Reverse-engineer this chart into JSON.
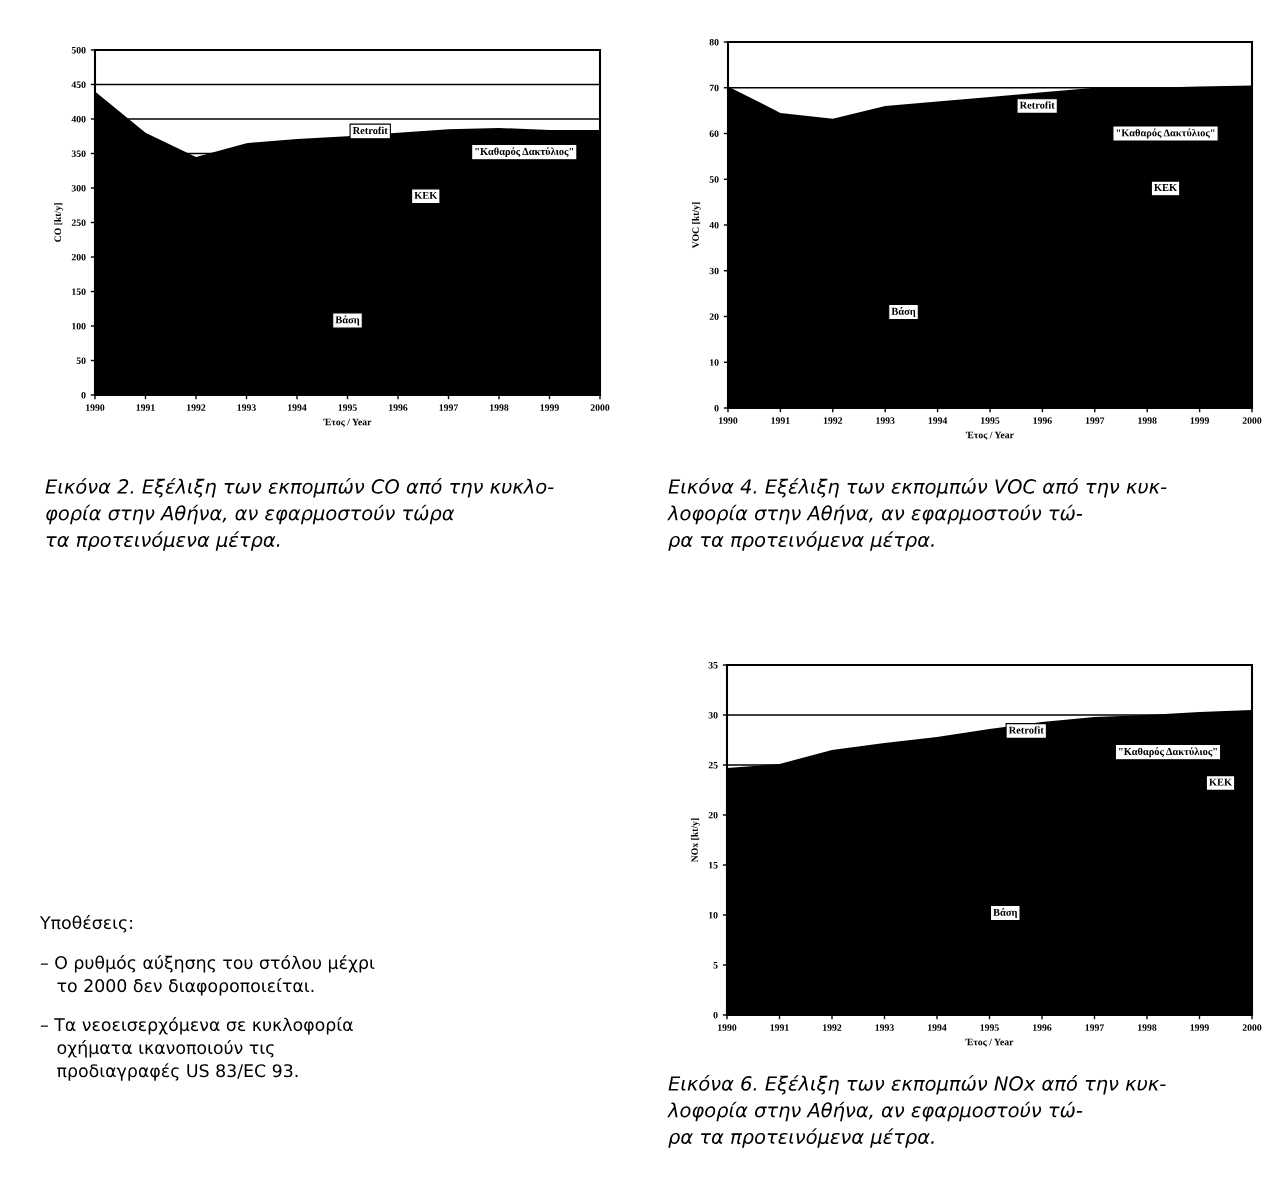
{
  "chart_data": [
    {
      "type": "area",
      "xlabel": "Έτος / Year",
      "ylabel": "CO [kt/y]",
      "x": [
        1990,
        1991,
        1992,
        1993,
        1994,
        1995,
        1996,
        1997,
        1998,
        1999,
        2000
      ],
      "series": [
        {
          "color": "#000000",
          "values": [
            440,
            380,
            345,
            365,
            371,
            375,
            380,
            385,
            387,
            384,
            384
          ]
        }
      ],
      "xlim": [
        1990,
        2000
      ],
      "xticks": [
        1990,
        1991,
        1992,
        1993,
        1994,
        1995,
        1996,
        1997,
        1998,
        1999,
        2000
      ],
      "ylim": [
        0,
        500
      ],
      "yticks": [
        0,
        50,
        100,
        150,
        200,
        250,
        300,
        350,
        400,
        450,
        500
      ],
      "grid": "y",
      "annotations": [
        {
          "text": "Retrofit",
          "x": 1995.45,
          "y": 382
        },
        "\"Καθαρός Δακτύλιος\"",
        {
          "text": "ΚΕΚ",
          "x": 1996.55,
          "y": 288
        },
        {
          "text": "Βάση",
          "x": 1995.0,
          "y": 108
        },
        "Εικόνα 2. Εξέλιξη των εκπομπών CO από την κυκλο-\nφορία στην Αθήνα, αν εφαρμοστούν τώρα\nτα προτεινόμενα μέτρα."
      ]
    },
    {
      "type": "area",
      "xlabel": "Έτος / Year",
      "ylabel": "VOC [kt/y]",
      "x": [
        1990,
        1991,
        1992,
        1993,
        1994,
        1995,
        1996,
        1997,
        1998,
        1999,
        2000
      ],
      "series": [
        {
          "color": "#000000",
          "values": [
            70.3,
            64.5,
            63.2,
            66,
            67,
            68,
            69,
            70,
            70,
            70.3,
            70.5
          ]
        }
      ],
      "xlim": [
        1990,
        2000
      ],
      "xticks": [
        1990,
        1991,
        1992,
        1993,
        1994,
        1995,
        1996,
        1997,
        1998,
        1999,
        2000
      ],
      "ylim": [
        0,
        80
      ],
      "yticks": [
        0,
        10,
        20,
        30,
        40,
        50,
        60,
        70,
        80
      ],
      "grid": "y",
      "annotations": [
        {
          "text": "Retrofit",
          "x": 1995.9,
          "y": 66
        },
        "\"Καθαρός Δακτύλιος\"",
        {
          "text": "ΚΕΚ",
          "x": 1998.35,
          "y": 48
        },
        {
          "text": "Βάση",
          "x": 1993.35,
          "y": 21
        },
        "Εικόνα 4. Εξέλιξη των εκπομπών VOC από την κυκ-\nλοφορία στην Αθήνα, αν εφαρμοστούν τώ-\nρα τα προτεινόμενα μέτρα."
      ]
    },
    {
      "type": "other",
      "title": "Υποθέσεις:",
      "annotations": [
        "– Ο ρυθμός αύξησης του στόλου μέχρι\n   το 2000 δεν διαφοροποιείται.",
        "– Τα νεοεισερχόμενα σε κυκλοφορία\n   οχήματα ικανοποιούν τις\n   προδιαγραφές US 83/EC 93."
      ]
    },
    {
      "type": "area",
      "xlabel": "Έτος / Year",
      "ylabel": "NOx [kt/y]",
      "x": [
        1990,
        1991,
        1992,
        1993,
        1994,
        1995,
        1996,
        1997,
        1998,
        1999,
        2000
      ],
      "series": [
        {
          "color": "#000000",
          "values": [
            24.7,
            25.1,
            26.5,
            27.2,
            27.8,
            28.6,
            29.3,
            29.8,
            30,
            30.3,
            30.5
          ]
        }
      ],
      "xlim": [
        1990,
        2000
      ],
      "xticks": [
        1990,
        1991,
        1992,
        1993,
        1994,
        1995,
        1996,
        1997,
        1998,
        1999,
        2000
      ],
      "ylim": [
        0,
        35
      ],
      "yticks": [
        0,
        5,
        10,
        15,
        20,
        25,
        30,
        35
      ],
      "grid": "y",
      "annotations": [
        {
          "text": "Retrofit",
          "x": 1995.7,
          "y": 28.4
        },
        "\"Καθαρός Δακτύλιος\"",
        {
          "text": "ΚΕΚ",
          "x": 1999.4,
          "y": 23.2
        },
        {
          "text": "Βάση",
          "x": 1995.3,
          "y": 10.2
        },
        "Εικόνα 6. Εξέλιξη των εκπομπών NOx από την κυκ-\nλοφορία στην Αθήνα, αν εφαρμοστούν τώ-\nρα τα προτεινόμενα μέτρα."
      ]
    }
  ]
}
